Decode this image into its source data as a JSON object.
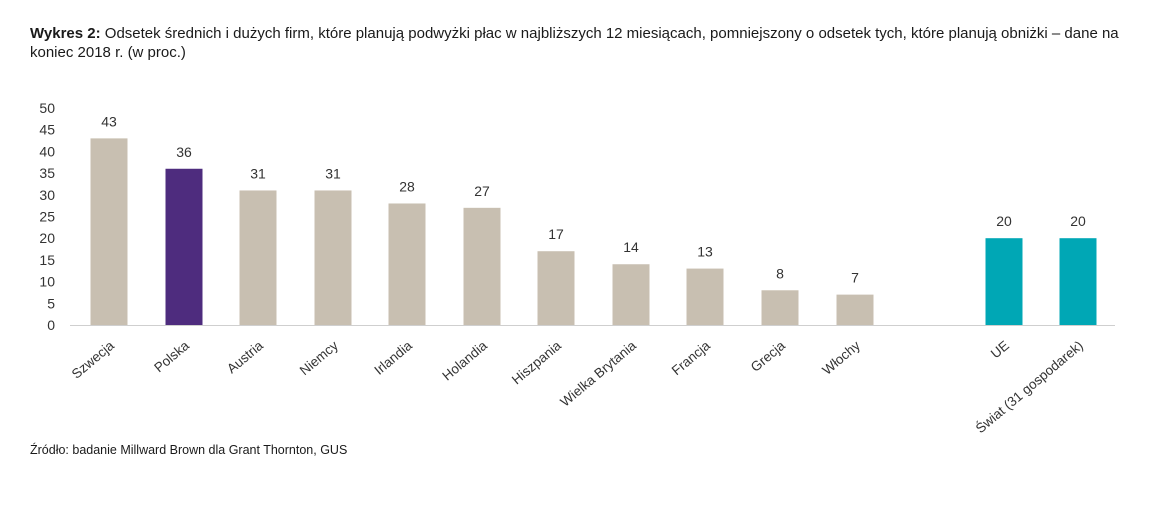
{
  "title": {
    "prefix": "Wykres 2:",
    "text": "Odsetek średnich i dużych firm, które planują podwyżki płac w najbliższych 12 miesiącach, pomniejszony o odsetek tych, które planują obniżki – dane na koniec 2018 r. (w proc.)"
  },
  "source": "Źródło: badanie Millward Brown dla Grant Thornton, GUS",
  "chart_data": {
    "type": "bar",
    "categories": [
      "Szwecja",
      "Polska",
      "Austria",
      "Niemcy",
      "Irlandia",
      "Holandia",
      "Hiszpania",
      "Wielka Brytania",
      "Francja",
      "Grecja",
      "Włochy",
      "UE",
      "Świat (31 gospodarek)"
    ],
    "values": [
      43,
      36,
      31,
      31,
      28,
      27,
      17,
      14,
      13,
      8,
      7,
      20,
      20
    ],
    "bar_colors": [
      "#c8bfb1",
      "#4e2c7e",
      "#c8bfb1",
      "#c8bfb1",
      "#c8bfb1",
      "#c8bfb1",
      "#c8bfb1",
      "#c8bfb1",
      "#c8bfb1",
      "#c8bfb1",
      "#c8bfb1",
      "#00a7b5",
      "#00a7b5"
    ],
    "ylim": [
      0,
      50
    ],
    "yticks": [
      0,
      5,
      10,
      15,
      20,
      25,
      30,
      35,
      40,
      45,
      50
    ],
    "grid": false,
    "data_labels": true,
    "xlabel": "",
    "ylabel": ""
  }
}
